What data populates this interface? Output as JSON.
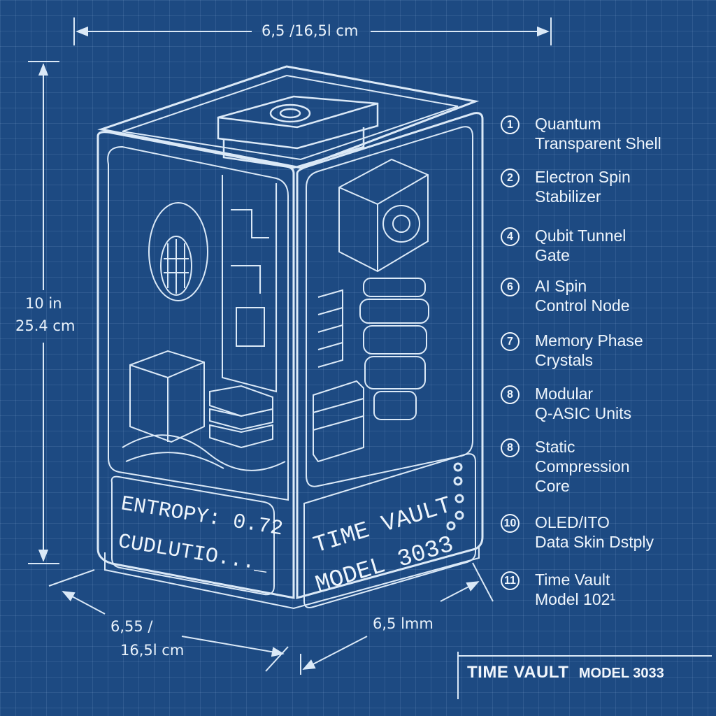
{
  "dimensions": {
    "top_width": "6,5 /16,5l cm",
    "height_in": "10 in",
    "height_cm": "25.4 cm",
    "depth_line1": "6,55 /",
    "depth_line2": "16,5l cm",
    "front_width": "6,5 lmm"
  },
  "device": {
    "display_line1": "ENTROPY: 0.72",
    "display_line2": "CUDLUTIO..._",
    "side_line1": "TIME VAULT",
    "side_line2": "MODEL 3033"
  },
  "legend": [
    {
      "num": "1",
      "label": "Quantum\nTransparent Shell"
    },
    {
      "num": "2",
      "label": "Electron Spin\nStabilizer"
    },
    {
      "num": "4",
      "label": "Qubit Tunnel\nGate"
    },
    {
      "num": "6",
      "label": "AI Spin\nControl Node"
    },
    {
      "num": "7",
      "label": "Memory Phase\nCrystals"
    },
    {
      "num": "8",
      "label": "Modular\nQ-ASIC Units"
    },
    {
      "num": "8",
      "label": "Static\nCompression\nCore"
    },
    {
      "num": "10",
      "label": "OLED/ITO\nData Skin Dstply"
    },
    {
      "num": "11",
      "label": "Time Vault\nModel 102¹"
    }
  ],
  "footer": {
    "title": "TIME VAULT",
    "model": "MODEL 3033"
  },
  "colors": {
    "background": "#1d4a82",
    "line": "#dbe9f7"
  }
}
